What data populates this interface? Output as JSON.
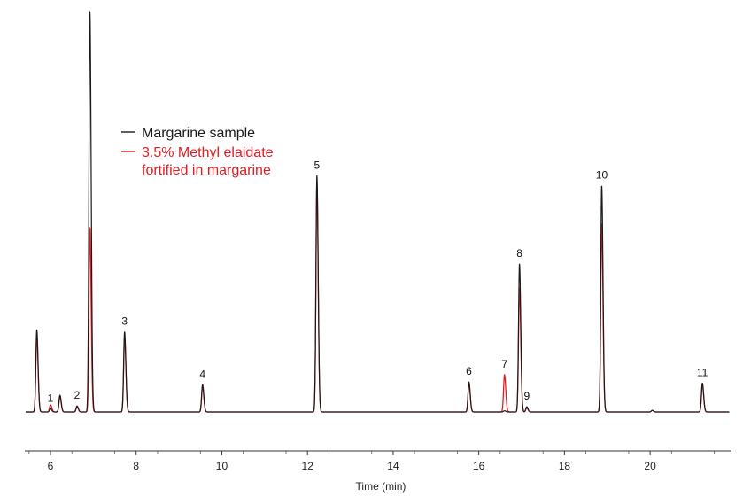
{
  "chart_data": {
    "type": "line",
    "title": "",
    "xlabel": "Time (min)",
    "ylabel": "",
    "xlim": [
      5.4,
      21.9
    ],
    "ylim": [
      0,
      100
    ],
    "xticks": [
      6,
      8,
      10,
      12,
      14,
      16,
      18,
      20
    ],
    "grid": false,
    "legend_placement": "top-left",
    "series": [
      {
        "name": "Margarine sample",
        "color": "#1a1a1a",
        "peaks": [
          {
            "x": 5.68,
            "y": 20.5
          },
          {
            "x": 6.0,
            "y": 0.8
          },
          {
            "x": 6.22,
            "y": 4.2
          },
          {
            "x": 6.62,
            "y": 1.5
          },
          {
            "x": 6.92,
            "y": 100
          },
          {
            "x": 7.73,
            "y": 20.0
          },
          {
            "x": 9.55,
            "y": 6.8
          },
          {
            "x": 12.22,
            "y": 59.0
          },
          {
            "x": 15.77,
            "y": 7.5
          },
          {
            "x": 16.6,
            "y": 0.3
          },
          {
            "x": 16.95,
            "y": 37.0
          },
          {
            "x": 17.12,
            "y": 1.3
          },
          {
            "x": 18.87,
            "y": 56.5
          },
          {
            "x": 20.05,
            "y": 0.4
          },
          {
            "x": 21.22,
            "y": 7.2
          }
        ]
      },
      {
        "name": "3.5% Methyl elaidate fortified in margarine",
        "color": "#e31c23",
        "peaks": [
          {
            "x": 5.68,
            "y": 19.0
          },
          {
            "x": 6.0,
            "y": 1.8
          },
          {
            "x": 6.22,
            "y": 3.8
          },
          {
            "x": 6.62,
            "y": 1.3
          },
          {
            "x": 6.92,
            "y": 46.0
          },
          {
            "x": 7.73,
            "y": 18.5
          },
          {
            "x": 9.55,
            "y": 6.3
          },
          {
            "x": 12.22,
            "y": 57.0
          },
          {
            "x": 15.77,
            "y": 7.2
          },
          {
            "x": 16.6,
            "y": 9.3
          },
          {
            "x": 16.95,
            "y": 31.0
          },
          {
            "x": 17.12,
            "y": 1.0
          },
          {
            "x": 18.87,
            "y": 47.0
          },
          {
            "x": 20.05,
            "y": 0.4
          },
          {
            "x": 21.22,
            "y": 6.8
          }
        ]
      }
    ],
    "peak_labels": [
      {
        "label": "1",
        "x": 6.0,
        "y": 0.8
      },
      {
        "label": "2",
        "x": 6.62,
        "y": 1.5
      },
      {
        "label": "3",
        "x": 7.73,
        "y": 20.0
      },
      {
        "label": "4",
        "x": 9.55,
        "y": 6.8
      },
      {
        "label": "5",
        "x": 12.22,
        "y": 59.0
      },
      {
        "label": "6",
        "x": 15.77,
        "y": 7.5
      },
      {
        "label": "7",
        "x": 16.6,
        "y": 9.3
      },
      {
        "label": "8",
        "x": 16.95,
        "y": 37.0
      },
      {
        "label": "9",
        "x": 17.12,
        "y": 1.3
      },
      {
        "label": "10",
        "x": 18.87,
        "y": 56.5
      },
      {
        "label": "11",
        "x": 21.22,
        "y": 7.2
      }
    ],
    "legend": [
      {
        "text": "Margarine sample",
        "color": "#1a1a1a"
      },
      {
        "text": "3.5% Methyl elaidate",
        "text2": "fortified in margarine",
        "color": "#e31c23"
      }
    ]
  }
}
